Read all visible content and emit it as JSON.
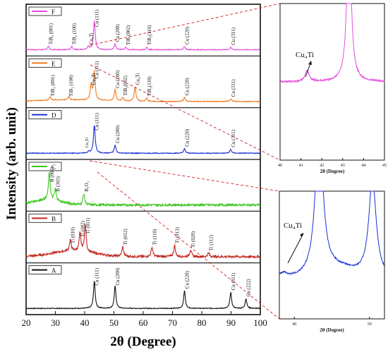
{
  "chart_data": {
    "type": "line",
    "ylabel": "Intensity (arb. unit)",
    "xlabel": "2θ (Degree)",
    "xlim": [
      20,
      100
    ],
    "x_ticks": [
      "20",
      "30",
      "40",
      "50",
      "60",
      "70",
      "80",
      "90",
      "100"
    ],
    "series": [
      {
        "name": "A",
        "color": "#111111",
        "peaks": [
          {
            "x": 43.3,
            "h": 0.85,
            "label": "Cu (111)"
          },
          {
            "x": 50.4,
            "h": 0.7,
            "label": "Cu (200)"
          },
          {
            "x": 74.1,
            "h": 0.55,
            "label": "Cu (220)"
          },
          {
            "x": 89.9,
            "h": 0.5,
            "label": "Cu (311)"
          },
          {
            "x": 95.1,
            "h": 0.3,
            "label": "Cu (222)"
          }
        ]
      },
      {
        "name": "B",
        "color": "#c0271f",
        "peaks": [
          {
            "x": 35.1,
            "h": 0.35,
            "label": "Ti (010)"
          },
          {
            "x": 38.4,
            "h": 0.55,
            "label": "Ti (002)"
          },
          {
            "x": 40.2,
            "h": 0.85,
            "label": "Ti (011)"
          },
          {
            "x": 53.0,
            "h": 0.3,
            "label": "Ti (012)"
          },
          {
            "x": 63.0,
            "h": 0.3,
            "label": "Ti (110)"
          },
          {
            "x": 70.7,
            "h": 0.35,
            "label": "Ti (013)"
          },
          {
            "x": 76.2,
            "h": 0.22,
            "label": "Ti (020)"
          },
          {
            "x": 82.3,
            "h": 0.12,
            "label": "Ti (112)"
          }
        ]
      },
      {
        "name": "C",
        "color": "#3cc61e",
        "peaks": [
          {
            "x": 27.9,
            "h": 0.85,
            "label": "B (002)"
          },
          {
            "x": 30.0,
            "h": 0.35,
            "label": "B (303)"
          },
          {
            "x": 39.7,
            "h": 0.35,
            "label": "B2O3"
          }
        ]
      },
      {
        "name": "D",
        "color": "#1b2fd4",
        "peaks": [
          {
            "x": 41.4,
            "h": 0.05,
            "label": "Cu4Ti"
          },
          {
            "x": 43.3,
            "h": 0.88,
            "label": "Cu (111)"
          },
          {
            "x": 50.4,
            "h": 0.25,
            "label": "Cu (200)"
          },
          {
            "x": 74.1,
            "h": 0.14,
            "label": "Cu (220)"
          },
          {
            "x": 89.9,
            "h": 0.12,
            "label": "Cu (311)"
          }
        ]
      },
      {
        "name": "E",
        "color": "#f07a22",
        "peaks": [
          {
            "x": 28.2,
            "h": 0.1,
            "label": "TiB2 (001)"
          },
          {
            "x": 34.5,
            "h": 0.1,
            "label": "TiB2 (100)"
          },
          {
            "x": 42.2,
            "h": 0.45,
            "label": "Cu4Ti"
          },
          {
            "x": 43.3,
            "h": 0.88,
            "label": "Cu (111)"
          },
          {
            "x": 50.4,
            "h": 0.35,
            "label": "Cu (200)"
          },
          {
            "x": 53.0,
            "h": 0.12,
            "label": "TiB2(002)"
          },
          {
            "x": 57.2,
            "h": 0.45,
            "label": "Cu4Ti"
          },
          {
            "x": 61.2,
            "h": 0.1,
            "label": "TiB2(110)"
          },
          {
            "x": 74.1,
            "h": 0.12,
            "label": "Cu (220)"
          },
          {
            "x": 89.9,
            "h": 0.08,
            "label": "Cu (311)"
          }
        ]
      },
      {
        "name": "F",
        "color": "#e84be0",
        "peaks": [
          {
            "x": 27.6,
            "h": 0.1,
            "label": "TiB2 (001)"
          },
          {
            "x": 35.6,
            "h": 0.1,
            "label": "TiB2 (100)"
          },
          {
            "x": 41.3,
            "h": 0.1,
            "label": "Cu4Ti"
          },
          {
            "x": 43.3,
            "h": 0.9,
            "label": "Cu (111)"
          },
          {
            "x": 50.4,
            "h": 0.18,
            "label": "Cu (200)"
          },
          {
            "x": 54.0,
            "h": 0.08,
            "label": "TiB2(002)"
          },
          {
            "x": 61.2,
            "h": 0.08,
            "label": "TiB2(110)"
          },
          {
            "x": 74.1,
            "h": 0.1,
            "label": "Cu (220)"
          },
          {
            "x": 89.9,
            "h": 0.08,
            "label": "Cu (311)"
          }
        ]
      }
    ],
    "insets": [
      {
        "name": "inset-F",
        "color": "#e84be0",
        "xlabel": "2θ (Degree)",
        "xlim": [
          40,
          45
        ],
        "x_ticks": [
          "40",
          "41",
          "42",
          "43",
          "44",
          "45"
        ],
        "annotation": "Cu4Ti",
        "peaks": [
          {
            "x": 41.3,
            "h": 0.08
          },
          {
            "x": 43.3,
            "h": 1.2
          }
        ]
      },
      {
        "name": "inset-D",
        "color": "#1b2fd4",
        "xlabel": "2θ (Degree)",
        "xlim": [
          38,
          52
        ],
        "x_ticks": [
          "40",
          "50"
        ],
        "annotation": "Cu4Ti",
        "peaks": [
          {
            "x": 38.5,
            "h": 0.04
          },
          {
            "x": 43.3,
            "h": 1.4
          },
          {
            "x": 50.4,
            "h": 0.9
          }
        ]
      }
    ]
  }
}
